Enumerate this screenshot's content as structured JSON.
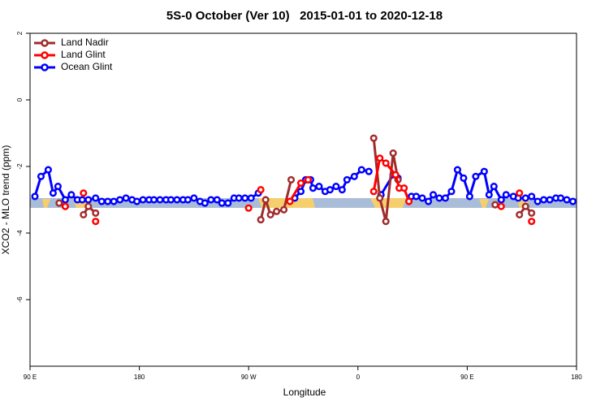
{
  "chart_data": {
    "type": "line",
    "title": "5S-0 October (Ver 10)   2015-01-01 to 2020-12-18",
    "xlabel": "Longitude",
    "ylabel": "XCO2 - MLO trend (ppm)",
    "xlim": [
      90,
      540
    ],
    "xticks": [
      {
        "value": 90,
        "label": "90 E"
      },
      180,
      {
        "value": 270,
        "label": "90 W"
      },
      {
        "value": 360,
        "label": "0"
      },
      {
        "value": 450,
        "label": "90 E"
      },
      {
        "value": 540,
        "label": "180"
      }
    ],
    "ylim": [
      -8,
      2
    ],
    "yticks": [
      2,
      0,
      -2,
      -4,
      -6
    ],
    "legend": "upper left",
    "series": [
      {
        "name": "Land Nadir",
        "color": "#a02c2c",
        "x": [
          114,
          119,
          null,
          134,
          138,
          144,
          null,
          280,
          284,
          288,
          293,
          299,
          305,
          null,
          373,
          378,
          383,
          389,
          393,
          null,
          473,
          null,
          493,
          498,
          503
        ],
        "values": [
          -3.1,
          -3.2,
          null,
          -3.45,
          -3.2,
          -3.4,
          null,
          -3.6,
          -3.0,
          -3.45,
          -3.35,
          -3.3,
          -2.4,
          null,
          -1.15,
          -2.95,
          -3.65,
          -1.6,
          -2.4,
          null,
          -3.15,
          null,
          -3.45,
          -3.2,
          -3.4
        ]
      },
      {
        "name": "Land Glint",
        "color": "#ff0000",
        "x": [
          119,
          null,
          134,
          null,
          144,
          null,
          270,
          null,
          280,
          null,
          304,
          313,
          319,
          null,
          373,
          378,
          383,
          391,
          394,
          398,
          402,
          null,
          478,
          null,
          493,
          null,
          503
        ],
        "values": [
          -3.2,
          null,
          -2.8,
          null,
          -3.65,
          null,
          -3.25,
          null,
          -2.7,
          null,
          -3.05,
          -2.5,
          -2.4,
          null,
          -2.75,
          -1.75,
          -1.9,
          -2.25,
          -2.65,
          -2.65,
          -3.05,
          null,
          -3.2,
          null,
          -2.8,
          null,
          -3.65
        ]
      },
      {
        "name": "Ocean Glint",
        "color": "#0000ff",
        "x": [
          94,
          99,
          105,
          109,
          113,
          119,
          124,
          129,
          133,
          138,
          144,
          149,
          154,
          159,
          164,
          169,
          174,
          178,
          183,
          188,
          192,
          197,
          202,
          206,
          211,
          216,
          220,
          225,
          230,
          234,
          239,
          244,
          248,
          253,
          258,
          262,
          267,
          272,
          278,
          null,
          308,
          313,
          317,
          321,
          323,
          328,
          333,
          337,
          342,
          347,
          351,
          357,
          363,
          369,
          null,
          379,
          389,
          393,
          null,
          404,
          408,
          413,
          418,
          422,
          427,
          432,
          437,
          442,
          447,
          452,
          457,
          464,
          468,
          472,
          478,
          482,
          488,
          492,
          498,
          503,
          508,
          513,
          518,
          523,
          527,
          532,
          537
        ],
        "values": [
          -2.9,
          -2.3,
          -2.1,
          -2.8,
          -2.6,
          -3.0,
          -2.85,
          -3.0,
          -3.0,
          -3.0,
          -2.95,
          -3.05,
          -3.05,
          -3.05,
          -3.0,
          -2.95,
          -3.0,
          -3.05,
          -3.0,
          -3.0,
          -3.0,
          -3.0,
          -3.0,
          -3.0,
          -3.0,
          -3.0,
          -3.0,
          -2.95,
          -3.05,
          -3.1,
          -3.0,
          -3.0,
          -3.1,
          -3.1,
          -2.95,
          -2.95,
          -2.95,
          -2.95,
          -2.8,
          null,
          -2.95,
          -2.75,
          -2.4,
          -2.4,
          -2.65,
          -2.6,
          -2.75,
          -2.7,
          -2.6,
          -2.7,
          -2.4,
          -2.3,
          -2.1,
          -2.15,
          null,
          -2.85,
          -2.25,
          -2.35,
          null,
          -2.9,
          -2.9,
          -2.95,
          -3.05,
          -2.85,
          -2.95,
          -2.95,
          -2.75,
          -2.1,
          -2.35,
          -2.9,
          -2.3,
          -2.15,
          -2.85,
          -2.6,
          -3.0,
          -2.85,
          -2.9,
          -2.95,
          -2.95,
          -2.9,
          -3.05,
          -3.0,
          -3.0,
          -2.95,
          -2.95,
          -3.0,
          -3.05
        ]
      }
    ]
  }
}
